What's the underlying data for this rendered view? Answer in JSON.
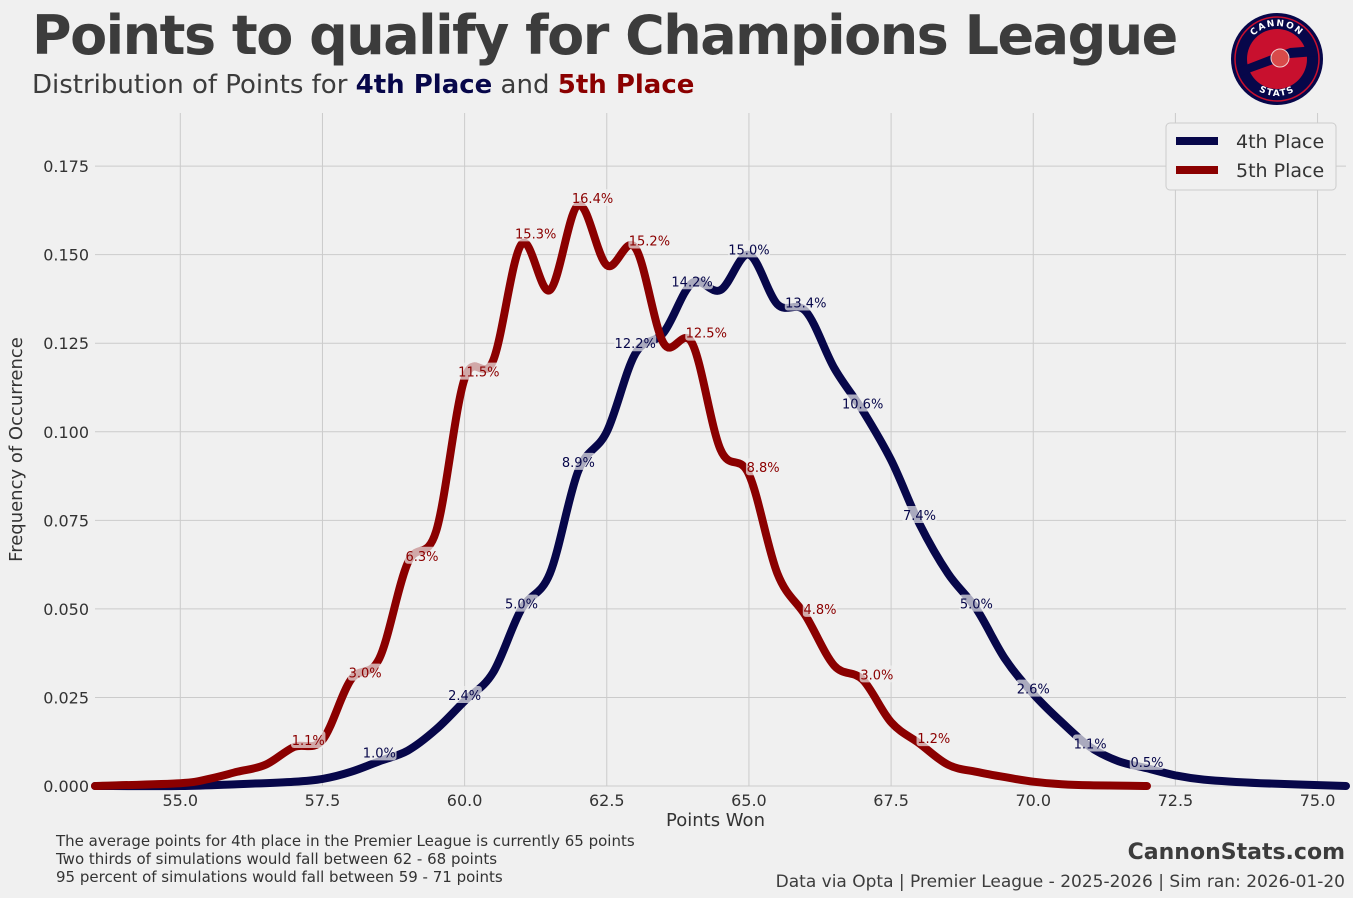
{
  "title": "Points to qualify for Champions League",
  "subtitle": {
    "prefix": "Distribution of Points for ",
    "series_a": "4th Place",
    "middle": " and ",
    "series_b": "5th Place"
  },
  "logo": {
    "top_text": "CANNON",
    "bottom_text": "STATS"
  },
  "footer": {
    "notes": [
      "The average points for 4th place in the Premier League is currently 65 points",
      "Two thirds of simulations would fall between 62 - 68 points",
      "95 percent of simulations would fall between 59 - 71 points"
    ],
    "site": "CannonStats.com",
    "source": "Data via Opta | Premier League - 2025-2026 | Sim ran: 2026-01-20"
  },
  "colors": {
    "fourth": "#07074a",
    "fifth": "#8b0000",
    "background": "#f0f0f0",
    "grid": "#cbcbcb"
  },
  "chart_data": {
    "type": "line",
    "title": "Points to qualify for Champions League",
    "xlabel": "Points Won",
    "ylabel": "Frequency of Occurrence",
    "xlim": [
      53.5,
      75.5
    ],
    "ylim": [
      0,
      0.19
    ],
    "xticks": [
      55.0,
      57.5,
      60.0,
      62.5,
      65.0,
      67.5,
      70.0,
      72.5,
      75.0
    ],
    "xtick_labels": [
      "55.0",
      "57.5",
      "60.0",
      "62.5",
      "65.0",
      "67.5",
      "70.0",
      "72.5",
      "75.0"
    ],
    "yticks": [
      0,
      0.025,
      0.05,
      0.075,
      0.1,
      0.125,
      0.15,
      0.175
    ],
    "ytick_labels": [
      "0.000",
      "0.025",
      "0.050",
      "0.075",
      "0.100",
      "0.125",
      "0.150",
      "0.175"
    ],
    "grid": true,
    "legend_position": "top-right",
    "series": [
      {
        "name": "4th Place",
        "x": [
          53.5,
          55,
          56,
          57,
          57.5,
          58,
          58.5,
          59,
          59.5,
          60,
          60.5,
          61,
          61.5,
          62,
          62.5,
          63,
          63.5,
          64,
          64.5,
          65,
          65.5,
          66,
          66.5,
          67,
          67.5,
          68,
          68.5,
          69,
          69.5,
          70,
          70.5,
          71,
          71.5,
          72,
          72.5,
          73,
          74,
          75.5
        ],
        "y": [
          0.0,
          0.0,
          0.0005,
          0.0012,
          0.002,
          0.004,
          0.007,
          0.01,
          0.016,
          0.024,
          0.032,
          0.05,
          0.06,
          0.089,
          0.1,
          0.122,
          0.128,
          0.142,
          0.14,
          0.15,
          0.136,
          0.134,
          0.118,
          0.106,
          0.092,
          0.074,
          0.06,
          0.05,
          0.036,
          0.026,
          0.018,
          0.011,
          0.007,
          0.005,
          0.003,
          0.0018,
          0.0008,
          0.0
        ]
      },
      {
        "name": "5th Place",
        "x": [
          53.5,
          55,
          55.5,
          56,
          56.5,
          57,
          57.5,
          58,
          58.5,
          59,
          59.5,
          60,
          60.5,
          61,
          61.5,
          62,
          62.5,
          63,
          63.5,
          64,
          64.5,
          65,
          65.5,
          66,
          66.5,
          67,
          67.5,
          68,
          68.5,
          69,
          69.5,
          70,
          70.5,
          71,
          71.5,
          72
        ],
        "y": [
          0.0,
          0.0008,
          0.002,
          0.004,
          0.006,
          0.011,
          0.013,
          0.03,
          0.036,
          0.063,
          0.072,
          0.115,
          0.12,
          0.153,
          0.14,
          0.164,
          0.147,
          0.152,
          0.125,
          0.125,
          0.095,
          0.088,
          0.06,
          0.048,
          0.034,
          0.03,
          0.018,
          0.012,
          0.006,
          0.004,
          0.0025,
          0.0012,
          0.0005,
          0.0002,
          0.0001,
          0.0
        ]
      }
    ],
    "annotations": [
      {
        "series": "4th Place",
        "x": 58.5,
        "y": 0.0095,
        "label": "1.0%"
      },
      {
        "series": "4th Place",
        "x": 60.0,
        "y": 0.0257,
        "label": "2.4%"
      },
      {
        "series": "4th Place",
        "x": 61.0,
        "y": 0.0515,
        "label": "5.0%"
      },
      {
        "series": "4th Place",
        "x": 62.0,
        "y": 0.0915,
        "label": "8.9%"
      },
      {
        "series": "4th Place",
        "x": 63.0,
        "y": 0.125,
        "label": "12.2%"
      },
      {
        "series": "4th Place",
        "x": 64.0,
        "y": 0.1425,
        "label": "14.2%"
      },
      {
        "series": "4th Place",
        "x": 65.0,
        "y": 0.1515,
        "label": "15.0%"
      },
      {
        "series": "4th Place",
        "x": 66.0,
        "y": 0.1365,
        "label": "13.4%"
      },
      {
        "series": "4th Place",
        "x": 67.0,
        "y": 0.108,
        "label": "10.6%"
      },
      {
        "series": "4th Place",
        "x": 68.0,
        "y": 0.0765,
        "label": "7.4%"
      },
      {
        "series": "4th Place",
        "x": 69.0,
        "y": 0.0515,
        "label": "5.0%"
      },
      {
        "series": "4th Place",
        "x": 70.0,
        "y": 0.0275,
        "label": "2.6%"
      },
      {
        "series": "4th Place",
        "x": 71.0,
        "y": 0.012,
        "label": "1.1%"
      },
      {
        "series": "4th Place",
        "x": 72.0,
        "y": 0.0068,
        "label": "0.5%"
      },
      {
        "series": "5th Place",
        "x": 57.25,
        "y": 0.013,
        "label": "1.1%"
      },
      {
        "series": "5th Place",
        "x": 58.25,
        "y": 0.032,
        "label": "3.0%"
      },
      {
        "series": "5th Place",
        "x": 59.25,
        "y": 0.065,
        "label": "6.3%"
      },
      {
        "series": "5th Place",
        "x": 60.25,
        "y": 0.117,
        "label": "11.5%"
      },
      {
        "series": "5th Place",
        "x": 61.25,
        "y": 0.156,
        "label": "15.3%"
      },
      {
        "series": "5th Place",
        "x": 62.25,
        "y": 0.166,
        "label": "16.4%"
      },
      {
        "series": "5th Place",
        "x": 63.25,
        "y": 0.154,
        "label": "15.2%"
      },
      {
        "series": "5th Place",
        "x": 64.25,
        "y": 0.128,
        "label": "12.5%"
      },
      {
        "series": "5th Place",
        "x": 65.25,
        "y": 0.09,
        "label": "8.8%"
      },
      {
        "series": "5th Place",
        "x": 66.25,
        "y": 0.05,
        "label": "4.8%"
      },
      {
        "series": "5th Place",
        "x": 67.25,
        "y": 0.0315,
        "label": "3.0%"
      },
      {
        "series": "5th Place",
        "x": 68.25,
        "y": 0.0135,
        "label": "1.2%"
      }
    ]
  }
}
